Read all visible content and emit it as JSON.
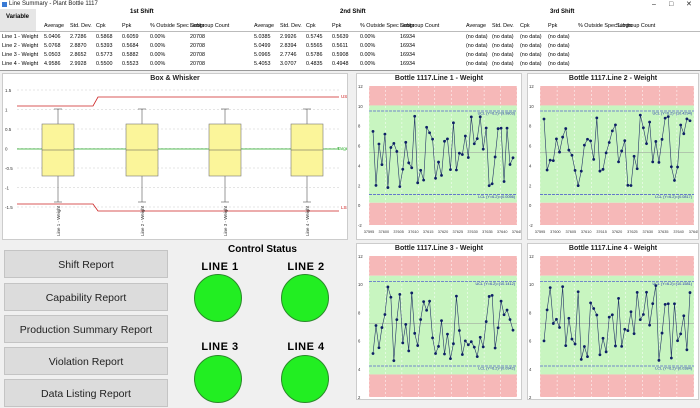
{
  "window": {
    "title": "Line Summary - Plant Bottle 1117",
    "minimize": "–",
    "maximize": "□",
    "close": "✕"
  },
  "summary": {
    "variable_header": "Variable",
    "shift_headers": [
      "1st Shift",
      "2nd Shift",
      "3rd Shift"
    ],
    "column_labels": [
      "Average",
      "Std. Dev.",
      "Cpk",
      "Ppk",
      "% Outside Spec Limits",
      "Subgroup Count"
    ],
    "rows": [
      {
        "name": "Line 1 - Weight",
        "s1": [
          "5.0406",
          "2.7286",
          "0.5868",
          "0.6059",
          "0.00%",
          "20708"
        ],
        "s2": [
          "5.0385",
          "2.9926",
          "0.5745",
          "0.5639",
          "0.00%",
          "16934"
        ],
        "s3": [
          "(no data)",
          "(no data)",
          "(no data)",
          "(no data)"
        ]
      },
      {
        "name": "Line 2 - Weight",
        "s1": [
          "5.0768",
          "2.8870",
          "0.5393",
          "0.5684",
          "0.00%",
          "20708"
        ],
        "s2": [
          "5.0499",
          "2.8394",
          "0.5565",
          "0.5611",
          "0.00%",
          "16934"
        ],
        "s3": [
          "(no data)",
          "(no data)",
          "(no data)",
          "(no data)"
        ]
      },
      {
        "name": "Line 3 - Weight",
        "s1": [
          "5.0503",
          "2.8652",
          "0.5773",
          "0.5882",
          "0.00%",
          "20708"
        ],
        "s2": [
          "5.0965",
          "2.7746",
          "0.5786",
          "0.5908",
          "0.00%",
          "16934"
        ],
        "s3": [
          "(no data)",
          "(no data)",
          "(no data)",
          "(no data)"
        ]
      },
      {
        "name": "Line 4 - Weight",
        "s1": [
          "4.9586",
          "2.9928",
          "0.5500",
          "0.5523",
          "0.00%",
          "20708"
        ],
        "s2": [
          "5.4053",
          "3.0707",
          "0.4835",
          "0.4948",
          "0.00%",
          "16934"
        ],
        "s3": [
          "(no data)",
          "(no data)",
          "(no data)",
          "(no data)"
        ]
      }
    ]
  },
  "boxplot": {
    "title": "Box & Whisker",
    "y_ticks": [
      "1.5",
      "1",
      "0.5",
      "0",
      "-0.5",
      "-1",
      "-1.5"
    ],
    "usl_label": "USL",
    "target_label": "Target",
    "lsl_label": "LSL",
    "categories": [
      "Line 1 - Weight",
      "Line 2 - Weight",
      "Line 3 - Weight",
      "Line 4 - Weight"
    ],
    "colors": {
      "box": "#fbf59a",
      "target": "#22aa22",
      "spec": "#cc2222"
    }
  },
  "control_charts": [
    {
      "title": "Bottle 1117.Line 1 - Weight",
      "ucl": "UCL (Y=6.2)=(9.9803)",
      "lcl": "LCL (Y=6.2)=(0.0056)",
      "x_ticks": [
        "37595",
        "37600",
        "37605",
        "37610",
        "37615",
        "37620",
        "37625",
        "37630",
        "37635",
        "37640",
        "37645"
      ],
      "y_ticks": [
        "12",
        "10",
        "8",
        "6",
        "4",
        "2",
        "0",
        "-2"
      ]
    },
    {
      "title": "Bottle 1117.Line 2 - Weight",
      "ucl": "UCL (Y=6.2)=(10.4294)",
      "lcl": "LCL (Y=6.2)=(0.0817)",
      "x_ticks": [
        "37595",
        "37600",
        "37605",
        "37610",
        "37615",
        "37620",
        "37625",
        "37630",
        "37635",
        "37640",
        "37645"
      ],
      "y_ticks": [
        "12",
        "10",
        "8",
        "6",
        "4",
        "2",
        "0",
        "-2"
      ]
    },
    {
      "title": "Bottle 1117.Line 3 - Weight",
      "ucl": "UCL (Y=6.2)=(10.1412)",
      "lcl": "LCL (Y=6.2)=(0.0942)",
      "x_ticks": [],
      "y_ticks": [
        "12",
        "10",
        "8",
        "6",
        "4",
        "2"
      ]
    },
    {
      "title": "Bottle 1117.Line 4 - Weight",
      "ucl": "UCL (Y=6.2)=(10.1581)",
      "lcl": "LCL (Y=6.2)=(0.0384)",
      "x_ticks": [],
      "y_ticks": [
        "12",
        "10",
        "8",
        "6",
        "4",
        "2"
      ]
    }
  ],
  "buttons": [
    "Shift Report",
    "Capability Report",
    "Production Summary Report",
    "Violation Report",
    "Data Listing Report"
  ],
  "control_status": {
    "title": "Control Status",
    "lines": [
      {
        "label": "LINE 1",
        "color": "#22ee22"
      },
      {
        "label": "LINE 2",
        "color": "#22ee22"
      },
      {
        "label": "LINE 3",
        "color": "#22ee22"
      },
      {
        "label": "LINE 4",
        "color": "#22ee22"
      }
    ]
  }
}
